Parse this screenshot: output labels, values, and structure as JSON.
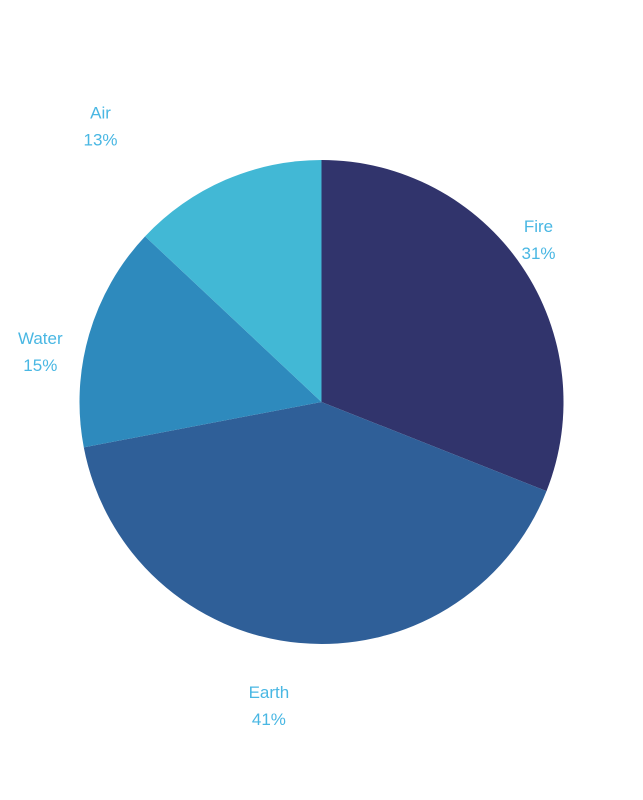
{
  "chart_data": {
    "type": "pie",
    "categories": [
      "Fire",
      "Earth",
      "Water",
      "Air"
    ],
    "values": [
      31,
      41,
      15,
      13
    ],
    "value_labels": [
      "31%",
      "41%",
      "15%",
      "13%"
    ],
    "colors": [
      "#31346c",
      "#2f5f98",
      "#2e8abd",
      "#42b8d5"
    ],
    "label_color": "#49b7e3",
    "start": "12 o'clock",
    "direction": "clockwise",
    "legend": "none"
  }
}
